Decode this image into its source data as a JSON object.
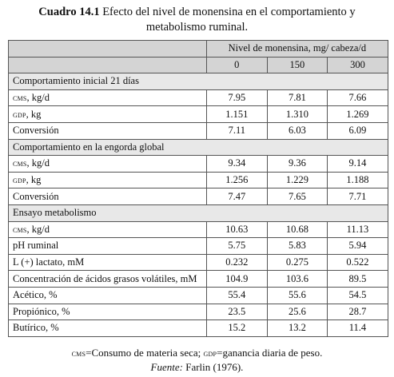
{
  "caption": {
    "label": "Cuadro 14.1",
    "text_line1": " Efecto del nivel de monensina en el comportamiento y",
    "text_line2": "metabolismo ruminal."
  },
  "table": {
    "level_header": "Nivel de monensina, mg/ cabeza/d",
    "levels": [
      "0",
      "150",
      "300"
    ],
    "sections": [
      {
        "title": "Comportamiento inicial 21 días",
        "rows": [
          {
            "abbr": "cms",
            "rest": ", kg/d",
            "values": [
              "7.95",
              "7.81",
              "7.66"
            ]
          },
          {
            "abbr": "gdp",
            "rest": ", kg",
            "values": [
              "1.151",
              "1.310",
              "1.269"
            ]
          },
          {
            "abbr": "",
            "rest": "Conversión",
            "values": [
              "7.11",
              "6.03",
              "6.09"
            ]
          }
        ]
      },
      {
        "title": "Comportamiento en la engorda global",
        "rows": [
          {
            "abbr": "cms",
            "rest": ", kg/d",
            "values": [
              "9.34",
              "9.36",
              "9.14"
            ]
          },
          {
            "abbr": "gdp",
            "rest": ", kg",
            "values": [
              "1.256",
              "1.229",
              "1.188"
            ]
          },
          {
            "abbr": "",
            "rest": "Conversión",
            "values": [
              "7.47",
              "7.65",
              "7.71"
            ]
          }
        ]
      },
      {
        "title": "Ensayo metabolismo",
        "rows": [
          {
            "abbr": "cms",
            "rest": ", kg/d",
            "values": [
              "10.63",
              "10.68",
              "11.13"
            ]
          },
          {
            "abbr": "",
            "rest": "pH ruminal",
            "values": [
              "5.75",
              "5.83",
              "5.94"
            ]
          },
          {
            "abbr": "",
            "rest": "L (+) lactato, mM",
            "values": [
              "0.232",
              "0.275",
              "0.522"
            ]
          },
          {
            "abbr": "",
            "rest": "Concentración de ácidos grasos volátiles, mM",
            "values": [
              "104.9",
              "103.6",
              "89.5"
            ]
          },
          {
            "abbr": "",
            "rest": "Acético, %",
            "values": [
              "55.4",
              "55.6",
              "54.5"
            ]
          },
          {
            "abbr": "",
            "rest": "Propiónico, %",
            "values": [
              "23.5",
              "25.6",
              "28.7"
            ]
          },
          {
            "abbr": "",
            "rest": "Butírico, %",
            "values": [
              "15.2",
              "13.2",
              "11.4"
            ]
          }
        ]
      }
    ]
  },
  "footer": {
    "abbr1": "cms",
    "def1": "=Consumo de materia seca; ",
    "abbr2": "gdp",
    "def2": "=ganancia diaria de peso.",
    "source_label": "Fuente:",
    "source_text": " Farlin (1976)."
  },
  "colors": {
    "header_bg": "#d4d4d4",
    "section_bg": "#e8e8e8",
    "border": "#555555"
  }
}
